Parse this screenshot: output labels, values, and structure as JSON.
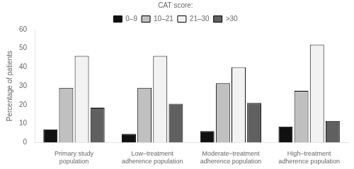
{
  "chart_data": {
    "type": "bar",
    "ylabel": "Percentage of patients",
    "categories": [
      "Primary study\npopulation",
      "Low–treatment\nadherence population",
      "Moderate–treatment\nadherence population",
      "High–treatment\nadherence population"
    ],
    "legend_title": "CAT score:",
    "series": [
      {
        "name": "0–9",
        "color": "#111111",
        "values": [
          7,
          4.5,
          6,
          8.5
        ]
      },
      {
        "name": "10–21",
        "color": "#c0c0c0",
        "values": [
          29,
          29,
          31.5,
          27.5
        ]
      },
      {
        "name": "21–30",
        "color": "#f2f2f2",
        "values": [
          46,
          46,
          40,
          52
        ]
      },
      {
        "name": ">30",
        "color": "#606060",
        "values": [
          18.5,
          20.5,
          21,
          11.5
        ]
      }
    ],
    "ylim": [
      0,
      60
    ],
    "yticks": [
      0,
      10,
      20,
      30,
      40,
      50,
      60
    ],
    "grid": false,
    "legend": "top"
  }
}
